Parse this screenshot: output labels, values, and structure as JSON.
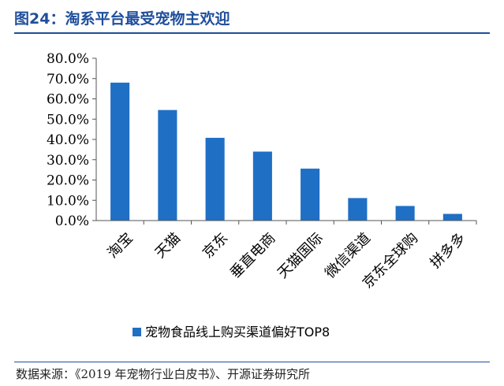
{
  "figure": {
    "title": "图24：淘系平台最受宠物主欢迎",
    "source": "数据来源：《2019 年宠物行业白皮书》、开源证券研究所"
  },
  "colors": {
    "bar": "#1f6fc5",
    "rule": "#1f4e9c",
    "axis": "#555555",
    "text": "#000000"
  },
  "chart_data": {
    "type": "bar",
    "title": "图24：淘系平台最受宠物主欢迎",
    "categories": [
      "淘宝",
      "天猫",
      "京东",
      "垂直电商",
      "天猫国际",
      "微信渠道",
      "京东全球购",
      "拼多多"
    ],
    "series": [
      {
        "name": "宠物食品线上购买渠道偏好TOP8",
        "values": [
          68.0,
          54.5,
          40.8,
          34.0,
          25.6,
          11.1,
          7.2,
          3.3
        ]
      }
    ],
    "ylim": [
      0,
      80
    ],
    "yticks": [
      0,
      10,
      20,
      30,
      40,
      50,
      60,
      70,
      80
    ],
    "ytick_labels": [
      "0.0%",
      "10.0%",
      "20.0%",
      "30.0%",
      "40.0%",
      "50.0%",
      "60.0%",
      "70.0%",
      "80.0%"
    ],
    "legend_position": "bottom",
    "grid": false
  }
}
